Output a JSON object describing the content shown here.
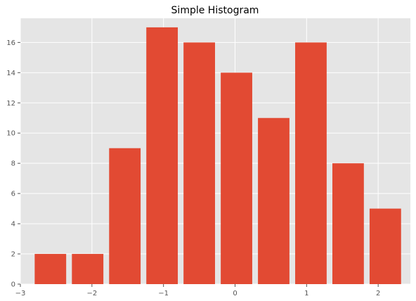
{
  "chart_data": {
    "type": "bar",
    "title": "Simple Histogram",
    "xlabel": "",
    "ylabel": "",
    "bins": [
      {
        "x0": -2.8,
        "x1": -2.36,
        "value": 2
      },
      {
        "x0": -2.28,
        "x1": -1.84,
        "value": 2
      },
      {
        "x0": -1.76,
        "x1": -1.32,
        "value": 9
      },
      {
        "x0": -1.24,
        "x1": -0.8,
        "value": 17
      },
      {
        "x0": -0.72,
        "x1": -0.28,
        "value": 16
      },
      {
        "x0": -0.2,
        "x1": 0.24,
        "value": 14
      },
      {
        "x0": 0.32,
        "x1": 0.76,
        "value": 11
      },
      {
        "x0": 0.84,
        "x1": 1.28,
        "value": 16
      },
      {
        "x0": 1.36,
        "x1": 1.8,
        "value": 8
      },
      {
        "x0": 1.88,
        "x1": 2.32,
        "value": 5
      }
    ],
    "xlim": [
      -3,
      2.45
    ],
    "ylim": [
      0,
      17.6
    ],
    "xticks": [
      -3,
      -2,
      -1,
      0,
      1,
      2
    ],
    "xtick_labels": [
      "−3",
      "−2",
      "−1",
      "0",
      "1",
      "2"
    ],
    "yticks": [
      0,
      2,
      4,
      6,
      8,
      10,
      12,
      14,
      16
    ],
    "ytick_labels": [
      "0",
      "2",
      "4",
      "6",
      "8",
      "10",
      "12",
      "14",
      "16"
    ],
    "grid": true,
    "colors": {
      "bar": "#E24A33",
      "plot_background": "#E5E5E5",
      "grid": "#FFFFFF"
    }
  }
}
